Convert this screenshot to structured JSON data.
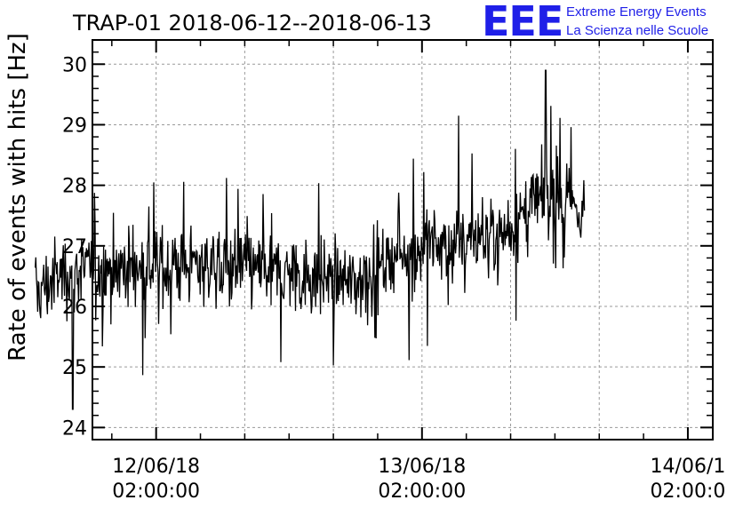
{
  "title": "TRAP-01 2018-06-12--2018-06-13",
  "logo": {
    "mark": "EEE",
    "line1": "Extreme Energy Events",
    "line2": "La Scienza nelle Scuole",
    "color": "#1f1fe8"
  },
  "chart_data": {
    "type": "line",
    "title": "TRAP-01 2018-06-12--2018-06-13",
    "xlabel": "",
    "ylabel": "Rate of events with hits [Hz]",
    "ylim": [
      23.8,
      30.4
    ],
    "yticks": [
      "24",
      "25",
      "26",
      "27",
      "28",
      "29",
      "30"
    ],
    "xlim": [
      "2018-06-11 20:15:00",
      "2018-06-14 04:15:00"
    ],
    "xticks": [
      {
        "date": "12/06/18",
        "time": "02:00:00"
      },
      {
        "date": "13/06/18",
        "time": "02:00:00"
      },
      {
        "date": "14/06/1",
        "time": "02:00:0"
      }
    ],
    "grid": true,
    "line_color": "#000000",
    "series": [
      {
        "x_start": "2018-06-11 15:05:00",
        "x_end": "2018-06-13 16:40:00",
        "points_count": 900,
        "trend": [
          {
            "x": "2018-06-11 15:05:00",
            "y": 26.2
          },
          {
            "x": "2018-06-11 18:00:00",
            "y": 26.6
          },
          {
            "x": "2018-06-12 06:00:00",
            "y": 26.7
          },
          {
            "x": "2018-06-12 12:00:00",
            "y": 26.6
          },
          {
            "x": "2018-06-12 20:00:00",
            "y": 26.4
          },
          {
            "x": "2018-06-13 00:00:00",
            "y": 26.9
          },
          {
            "x": "2018-06-13 06:00:00",
            "y": 27.1
          },
          {
            "x": "2018-06-13 10:00:00",
            "y": 27.3
          },
          {
            "x": "2018-06-13 13:00:00",
            "y": 27.8
          },
          {
            "x": "2018-06-13 16:40:00",
            "y": 27.6
          }
        ],
        "noise_amplitude": 0.55,
        "max": {
          "x": "2018-06-13 13:10:00",
          "y": 29.9
        },
        "min": {
          "x": "2018-06-11 18:30:00",
          "y": 24.3
        }
      }
    ]
  }
}
